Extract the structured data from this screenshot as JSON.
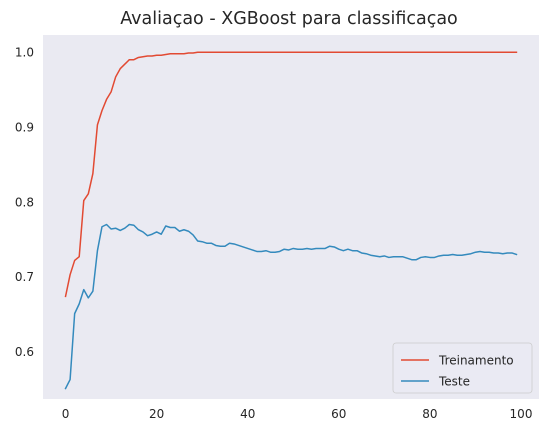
{
  "chart_data": {
    "type": "line",
    "title": "Avaliaçao - XGBoost para classificaçao",
    "xlabel": "",
    "ylabel": "",
    "xlim": [
      -4.95,
      103.95
    ],
    "ylim": [
      0.537,
      1.023
    ],
    "xticks": [
      0,
      20,
      40,
      60,
      80,
      100
    ],
    "yticks": [
      0.6,
      0.7,
      0.8,
      0.9,
      1.0
    ],
    "xtick_labels": [
      "0",
      "20",
      "40",
      "60",
      "80",
      "100"
    ],
    "ytick_labels": [
      "0.6",
      "0.7",
      "0.8",
      "0.9",
      "1.0"
    ],
    "grid": false,
    "background": "#eaeaf2",
    "legend_position": "lower right",
    "series": [
      {
        "name": "Treinamento",
        "color": "#e24a33",
        "points": [
          [
            0,
            0.674
          ],
          [
            1,
            0.703
          ],
          [
            2,
            0.722
          ],
          [
            3,
            0.727
          ],
          [
            4,
            0.802
          ],
          [
            5,
            0.811
          ],
          [
            6,
            0.838
          ],
          [
            7,
            0.903
          ],
          [
            8,
            0.922
          ],
          [
            9,
            0.937
          ],
          [
            10,
            0.947
          ],
          [
            11,
            0.967
          ],
          [
            12,
            0.978
          ],
          [
            13,
            0.984
          ],
          [
            14,
            0.99
          ],
          [
            15,
            0.99
          ],
          [
            16,
            0.993
          ],
          [
            17,
            0.994
          ],
          [
            18,
            0.995
          ],
          [
            19,
            0.995
          ],
          [
            20,
            0.996
          ],
          [
            21,
            0.996
          ],
          [
            22,
            0.997
          ],
          [
            23,
            0.998
          ],
          [
            24,
            0.998
          ],
          [
            25,
            0.998
          ],
          [
            26,
            0.998
          ],
          [
            27,
            0.999
          ],
          [
            28,
            0.999
          ],
          [
            29,
            1.0
          ],
          [
            30,
            1.0
          ],
          [
            40,
            1.0
          ],
          [
            50,
            1.0
          ],
          [
            60,
            1.0
          ],
          [
            70,
            1.0
          ],
          [
            80,
            1.0
          ],
          [
            90,
            1.0
          ],
          [
            99,
            1.0
          ]
        ]
      },
      {
        "name": "Teste",
        "color": "#348abd",
        "points": [
          [
            0,
            0.551
          ],
          [
            1,
            0.563
          ],
          [
            2,
            0.651
          ],
          [
            3,
            0.664
          ],
          [
            4,
            0.683
          ],
          [
            5,
            0.672
          ],
          [
            6,
            0.681
          ],
          [
            7,
            0.735
          ],
          [
            8,
            0.767
          ],
          [
            9,
            0.77
          ],
          [
            10,
            0.764
          ],
          [
            11,
            0.765
          ],
          [
            12,
            0.762
          ],
          [
            13,
            0.765
          ],
          [
            14,
            0.77
          ],
          [
            15,
            0.769
          ],
          [
            16,
            0.763
          ],
          [
            17,
            0.76
          ],
          [
            18,
            0.755
          ],
          [
            19,
            0.757
          ],
          [
            20,
            0.76
          ],
          [
            21,
            0.757
          ],
          [
            22,
            0.768
          ],
          [
            23,
            0.766
          ],
          [
            24,
            0.766
          ],
          [
            25,
            0.761
          ],
          [
            26,
            0.763
          ],
          [
            27,
            0.761
          ],
          [
            28,
            0.756
          ],
          [
            29,
            0.748
          ],
          [
            30,
            0.747
          ],
          [
            31,
            0.745
          ],
          [
            32,
            0.745
          ],
          [
            33,
            0.742
          ],
          [
            34,
            0.741
          ],
          [
            35,
            0.741
          ],
          [
            36,
            0.745
          ],
          [
            37,
            0.744
          ],
          [
            38,
            0.742
          ],
          [
            39,
            0.74
          ],
          [
            40,
            0.738
          ],
          [
            41,
            0.736
          ],
          [
            42,
            0.734
          ],
          [
            43,
            0.734
          ],
          [
            44,
            0.735
          ],
          [
            45,
            0.733
          ],
          [
            46,
            0.733
          ],
          [
            47,
            0.734
          ],
          [
            48,
            0.737
          ],
          [
            49,
            0.736
          ],
          [
            50,
            0.738
          ],
          [
            51,
            0.737
          ],
          [
            52,
            0.737
          ],
          [
            53,
            0.738
          ],
          [
            54,
            0.737
          ],
          [
            55,
            0.738
          ],
          [
            56,
            0.738
          ],
          [
            57,
            0.738
          ],
          [
            58,
            0.741
          ],
          [
            59,
            0.74
          ],
          [
            60,
            0.737
          ],
          [
            61,
            0.735
          ],
          [
            62,
            0.737
          ],
          [
            63,
            0.735
          ],
          [
            64,
            0.735
          ],
          [
            65,
            0.732
          ],
          [
            66,
            0.731
          ],
          [
            67,
            0.729
          ],
          [
            68,
            0.728
          ],
          [
            69,
            0.727
          ],
          [
            70,
            0.728
          ],
          [
            71,
            0.726
          ],
          [
            72,
            0.727
          ],
          [
            73,
            0.727
          ],
          [
            74,
            0.727
          ],
          [
            75,
            0.725
          ],
          [
            76,
            0.723
          ],
          [
            77,
            0.723
          ],
          [
            78,
            0.726
          ],
          [
            79,
            0.727
          ],
          [
            80,
            0.726
          ],
          [
            81,
            0.726
          ],
          [
            82,
            0.728
          ],
          [
            83,
            0.729
          ],
          [
            84,
            0.729
          ],
          [
            85,
            0.73
          ],
          [
            86,
            0.729
          ],
          [
            87,
            0.729
          ],
          [
            88,
            0.73
          ],
          [
            89,
            0.731
          ],
          [
            90,
            0.733
          ],
          [
            91,
            0.734
          ],
          [
            92,
            0.733
          ],
          [
            93,
            0.733
          ],
          [
            94,
            0.732
          ],
          [
            95,
            0.732
          ],
          [
            96,
            0.731
          ],
          [
            97,
            0.732
          ],
          [
            98,
            0.732
          ],
          [
            99,
            0.73
          ]
        ]
      }
    ]
  }
}
